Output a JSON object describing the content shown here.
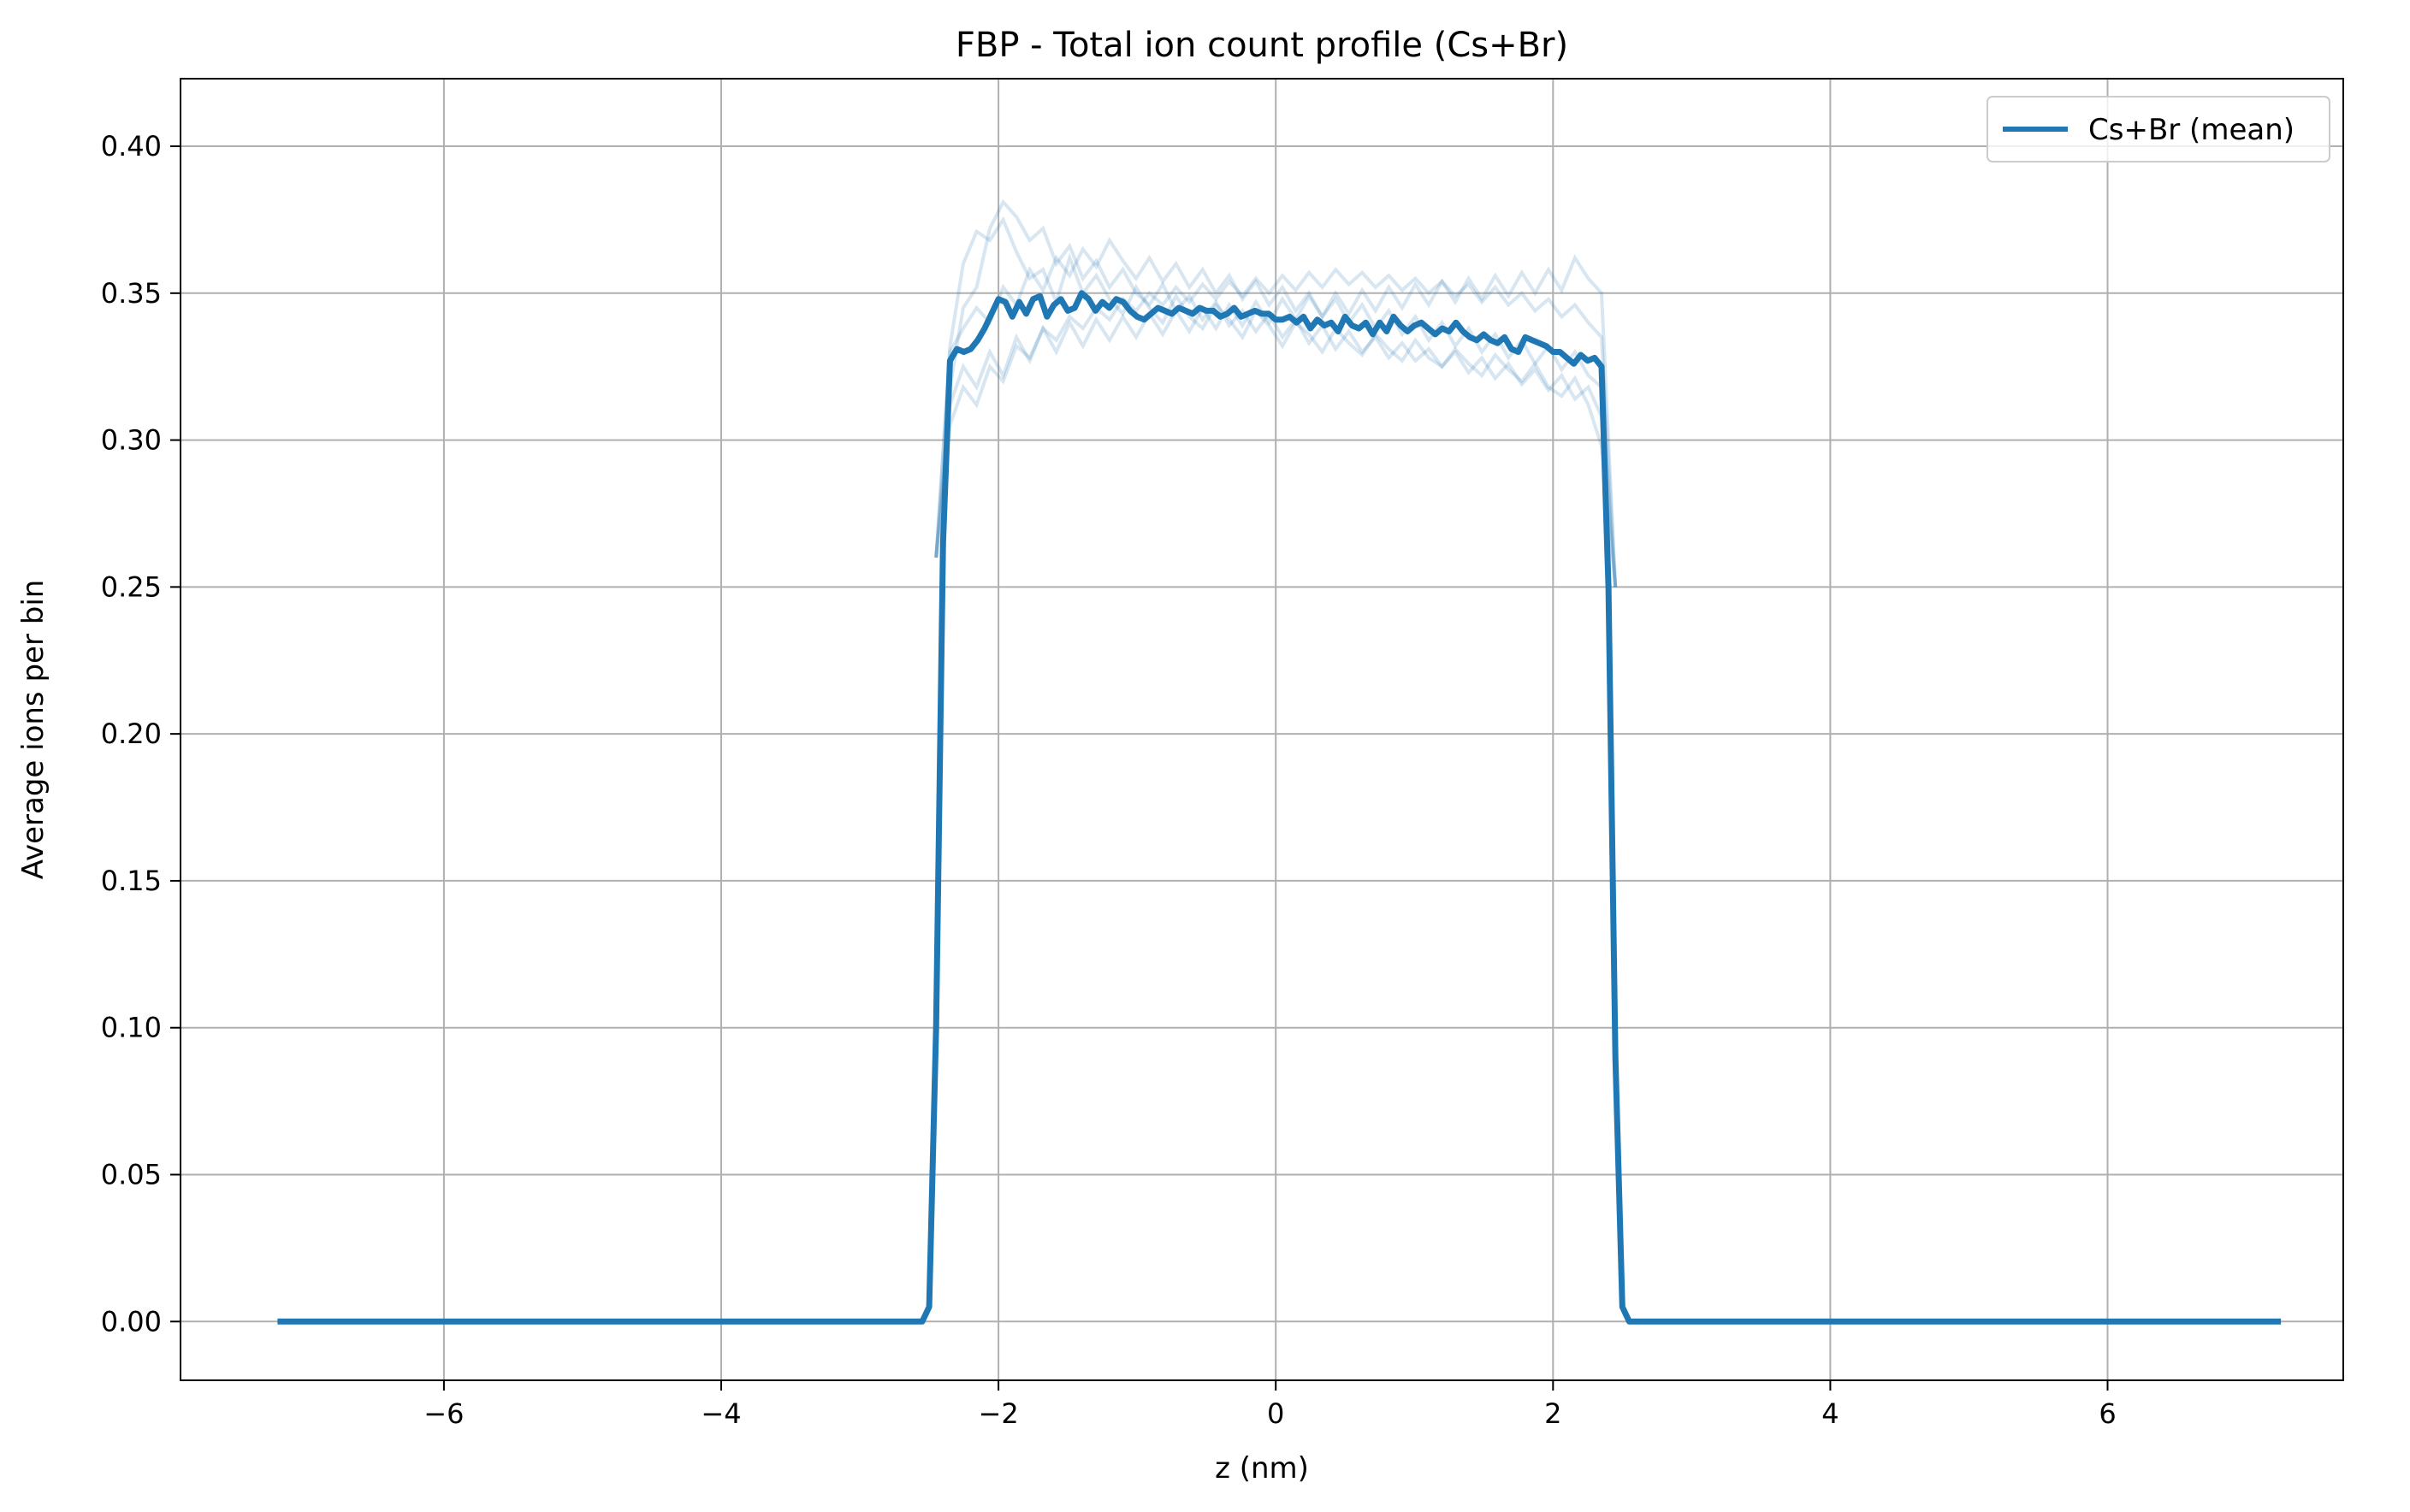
{
  "chart_data": {
    "type": "line",
    "title": "FBP - Total ion count profile (Cs+Br)",
    "xlabel": "z (nm)",
    "ylabel": "Average ions per bin",
    "xlim": [
      -7.9,
      7.7
    ],
    "ylim": [
      -0.02,
      0.423
    ],
    "xticks": [
      -6,
      -4,
      -2,
      0,
      2,
      4,
      6
    ],
    "xtick_labels": [
      "−6",
      "−4",
      "−2",
      "0",
      "2",
      "4",
      "6"
    ],
    "yticks": [
      0.0,
      0.05,
      0.1,
      0.15,
      0.2,
      0.25,
      0.3,
      0.35,
      0.4
    ],
    "ytick_labels": [
      "0.00",
      "0.05",
      "0.10",
      "0.15",
      "0.20",
      "0.25",
      "0.30",
      "0.35",
      "0.40"
    ],
    "grid": true,
    "legend_position": "top-right",
    "colors": {
      "series": "#1f77b4",
      "grid": "#b0b0b0",
      "axis": "#000000"
    },
    "series": [
      {
        "name": "Cs+Br (mean)",
        "x": [
          -7.2,
          -2.55,
          -2.5,
          -2.45,
          -2.4,
          -2.35,
          -2.3,
          -2.25,
          -2.2,
          -2.15,
          -2.1,
          -2.05,
          -2.0,
          -1.95,
          -1.9,
          -1.85,
          -1.8,
          -1.75,
          -1.7,
          -1.65,
          -1.6,
          -1.55,
          -1.5,
          -1.45,
          -1.4,
          -1.35,
          -1.3,
          -1.25,
          -1.2,
          -1.15,
          -1.1,
          -1.05,
          -1.0,
          -0.95,
          -0.9,
          -0.85,
          -0.8,
          -0.75,
          -0.7,
          -0.65,
          -0.6,
          -0.55,
          -0.5,
          -0.45,
          -0.4,
          -0.35,
          -0.3,
          -0.25,
          -0.2,
          -0.15,
          -0.1,
          -0.05,
          0.0,
          0.05,
          0.1,
          0.15,
          0.2,
          0.25,
          0.3,
          0.35,
          0.4,
          0.45,
          0.5,
          0.55,
          0.6,
          0.65,
          0.7,
          0.75,
          0.8,
          0.85,
          0.9,
          0.95,
          1.0,
          1.05,
          1.1,
          1.15,
          1.2,
          1.25,
          1.3,
          1.35,
          1.4,
          1.45,
          1.5,
          1.55,
          1.6,
          1.65,
          1.7,
          1.75,
          1.8,
          1.85,
          1.9,
          1.95,
          2.0,
          2.05,
          2.1,
          2.15,
          2.2,
          2.25,
          2.3,
          2.35,
          2.4,
          2.45,
          2.5,
          2.55,
          7.25
        ],
        "y": [
          0.0,
          0.0,
          0.005,
          0.1,
          0.265,
          0.327,
          0.331,
          0.33,
          0.331,
          0.334,
          0.338,
          0.343,
          0.348,
          0.347,
          0.342,
          0.347,
          0.343,
          0.348,
          0.349,
          0.342,
          0.346,
          0.348,
          0.344,
          0.345,
          0.35,
          0.348,
          0.344,
          0.347,
          0.345,
          0.348,
          0.347,
          0.344,
          0.342,
          0.341,
          0.343,
          0.345,
          0.344,
          0.343,
          0.345,
          0.344,
          0.343,
          0.345,
          0.344,
          0.344,
          0.342,
          0.343,
          0.345,
          0.342,
          0.343,
          0.344,
          0.343,
          0.343,
          0.341,
          0.341,
          0.342,
          0.34,
          0.342,
          0.338,
          0.341,
          0.339,
          0.34,
          0.337,
          0.342,
          0.339,
          0.338,
          0.34,
          0.336,
          0.34,
          0.337,
          0.342,
          0.339,
          0.337,
          0.339,
          0.34,
          0.338,
          0.336,
          0.338,
          0.337,
          0.34,
          0.337,
          0.335,
          0.334,
          0.336,
          0.334,
          0.333,
          0.335,
          0.331,
          0.33,
          0.335,
          0.334,
          0.333,
          0.332,
          0.33,
          0.33,
          0.328,
          0.326,
          0.329,
          0.327,
          0.328,
          0.325,
          0.25,
          0.09,
          0.005,
          0.0,
          0.0
        ]
      }
    ],
    "replicates_note_free": true,
    "replicates": [
      [
        0.332,
        0.36,
        0.371,
        0.368,
        0.375,
        0.364,
        0.355,
        0.358,
        0.347,
        0.362,
        0.35,
        0.356,
        0.348,
        0.343,
        0.352,
        0.345,
        0.34,
        0.349,
        0.342,
        0.338,
        0.346,
        0.341,
        0.335,
        0.344,
        0.339,
        0.332,
        0.34,
        0.336,
        0.33,
        0.338,
        0.333,
        0.329,
        0.336,
        0.331,
        0.327,
        0.334,
        0.328,
        0.325,
        0.331,
        0.326,
        0.322,
        0.329,
        0.324,
        0.32,
        0.326,
        0.318,
        0.315,
        0.321,
        0.312,
        0.298
      ],
      [
        0.318,
        0.345,
        0.352,
        0.372,
        0.381,
        0.376,
        0.368,
        0.372,
        0.36,
        0.366,
        0.355,
        0.361,
        0.352,
        0.358,
        0.35,
        0.346,
        0.353,
        0.344,
        0.349,
        0.341,
        0.347,
        0.339,
        0.344,
        0.337,
        0.343,
        0.335,
        0.341,
        0.333,
        0.339,
        0.331,
        0.337,
        0.33,
        0.335,
        0.328,
        0.333,
        0.327,
        0.331,
        0.325,
        0.33,
        0.323,
        0.328,
        0.321,
        0.326,
        0.319,
        0.324,
        0.317,
        0.322,
        0.314,
        0.318,
        0.308
      ],
      [
        0.305,
        0.318,
        0.312,
        0.325,
        0.32,
        0.332,
        0.328,
        0.338,
        0.334,
        0.342,
        0.338,
        0.345,
        0.341,
        0.348,
        0.344,
        0.35,
        0.346,
        0.352,
        0.347,
        0.353,
        0.348,
        0.354,
        0.349,
        0.355,
        0.35,
        0.356,
        0.351,
        0.357,
        0.352,
        0.358,
        0.353,
        0.357,
        0.352,
        0.356,
        0.351,
        0.355,
        0.35,
        0.354,
        0.349,
        0.353,
        0.347,
        0.352,
        0.346,
        0.35,
        0.344,
        0.348,
        0.342,
        0.346,
        0.34,
        0.335
      ],
      [
        0.33,
        0.338,
        0.345,
        0.34,
        0.352,
        0.346,
        0.358,
        0.351,
        0.362,
        0.356,
        0.365,
        0.359,
        0.368,
        0.361,
        0.355,
        0.362,
        0.354,
        0.36,
        0.352,
        0.358,
        0.35,
        0.356,
        0.348,
        0.354,
        0.346,
        0.352,
        0.344,
        0.35,
        0.342,
        0.348,
        0.34,
        0.346,
        0.338,
        0.344,
        0.336,
        0.342,
        0.334,
        0.34,
        0.332,
        0.338,
        0.33,
        0.336,
        0.328,
        0.334,
        0.326,
        0.332,
        0.324,
        0.33,
        0.322,
        0.318
      ],
      [
        0.312,
        0.325,
        0.318,
        0.33,
        0.322,
        0.335,
        0.327,
        0.338,
        0.33,
        0.34,
        0.332,
        0.341,
        0.334,
        0.342,
        0.335,
        0.343,
        0.336,
        0.344,
        0.337,
        0.345,
        0.338,
        0.346,
        0.339,
        0.347,
        0.34,
        0.348,
        0.341,
        0.349,
        0.342,
        0.35,
        0.343,
        0.351,
        0.344,
        0.352,
        0.345,
        0.353,
        0.346,
        0.354,
        0.347,
        0.355,
        0.348,
        0.356,
        0.349,
        0.357,
        0.35,
        0.358,
        0.351,
        0.362,
        0.355,
        0.35
      ]
    ]
  }
}
